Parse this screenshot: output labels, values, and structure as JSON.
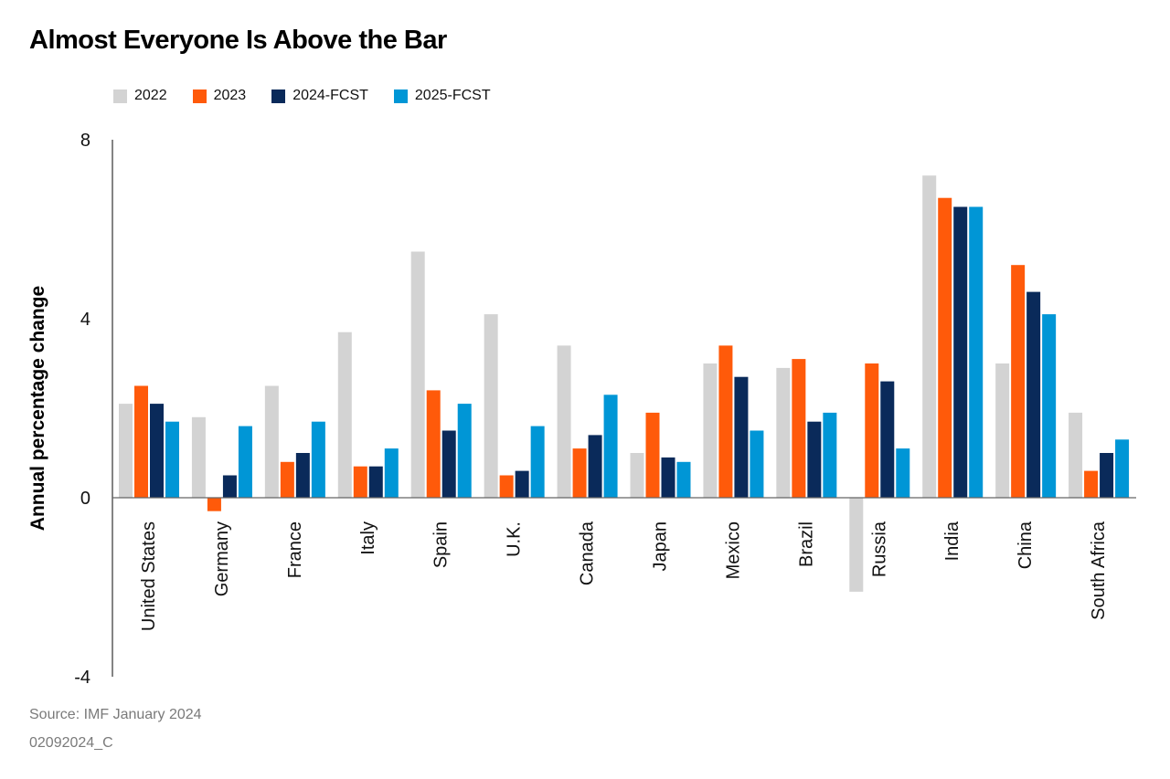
{
  "header": {
    "title": "Almost Everyone Is Above the Bar"
  },
  "footer": {
    "source": "Source: IMF January 2024",
    "code": "02092024_C"
  },
  "chart_data": {
    "type": "bar",
    "title": "Almost Everyone Is Above the Bar",
    "xlabel": "",
    "ylabel": "Annual percentage change",
    "ylim": [
      -4,
      8
    ],
    "yticks": [
      8,
      4,
      0,
      -4
    ],
    "grid": false,
    "legend_position": "top-left",
    "categories": [
      "United States",
      "Germany",
      "France",
      "Italy",
      "Spain",
      "U.K.",
      "Canada",
      "Japan",
      "Mexico",
      "Brazil",
      "Russia",
      "India",
      "China",
      "South Africa"
    ],
    "series": [
      {
        "name": "2022",
        "color": "#d3d3d3",
        "values": [
          2.1,
          1.8,
          2.5,
          3.7,
          5.5,
          4.1,
          3.4,
          1.0,
          3.0,
          2.9,
          -2.1,
          7.2,
          3.0,
          1.9
        ]
      },
      {
        "name": "2023",
        "color": "#ff5a0a",
        "values": [
          2.5,
          -0.3,
          0.8,
          0.7,
          2.4,
          0.5,
          1.1,
          1.9,
          3.4,
          3.1,
          3.0,
          6.7,
          5.2,
          0.6
        ]
      },
      {
        "name": "2024-FCST",
        "color": "#0a2a5a",
        "values": [
          2.1,
          0.5,
          1.0,
          0.7,
          1.5,
          0.6,
          1.4,
          0.9,
          2.7,
          1.7,
          2.6,
          6.5,
          4.6,
          1.0
        ]
      },
      {
        "name": "2025-FCST",
        "color": "#0096d6",
        "values": [
          1.7,
          1.6,
          1.7,
          1.1,
          2.1,
          1.6,
          2.3,
          0.8,
          1.5,
          1.9,
          1.1,
          6.5,
          4.1,
          1.3
        ]
      }
    ]
  }
}
